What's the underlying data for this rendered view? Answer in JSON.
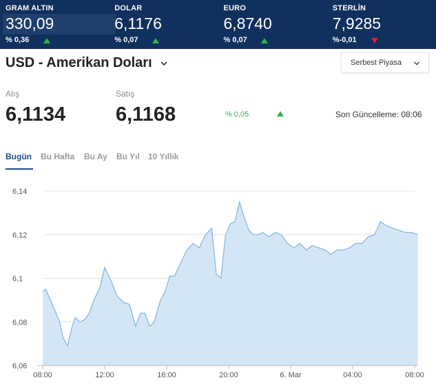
{
  "ticker": [
    {
      "name": "GRAM ALTIN",
      "value": "330,09",
      "change": "% 0,36",
      "direction": "up"
    },
    {
      "name": "DOLAR",
      "value": "6,1176",
      "change": "% 0,07",
      "direction": "up"
    },
    {
      "name": "EURO",
      "value": "6,8740",
      "change": "% 0,07",
      "direction": "up"
    },
    {
      "name": "STERLİN",
      "value": "7,9285",
      "change": "%-0,01",
      "direction": "down"
    }
  ],
  "header": {
    "title": "USD - Amerikan Doları",
    "market_select": "Serbest Piyasa"
  },
  "prices": {
    "buy_label": "Alış",
    "buy_value": "6,1134",
    "sell_label": "Satış",
    "sell_value": "6,1168",
    "change": "% 0,05",
    "updated": "Son Güncelleme: 08:06"
  },
  "tabs": [
    "Bugün",
    "Bu Hafta",
    "Bu Ay",
    "Bu Yıl",
    "10 Yıllık"
  ],
  "colors": {
    "ticker_bg": "#10305e",
    "up": "#2fb34c",
    "down": "#e5202e",
    "active_tab": "#1c4c8c",
    "line": "#7fb3e6",
    "area": "#d4e6f5"
  },
  "chart_data": {
    "type": "area",
    "xlabel": "",
    "ylabel": "",
    "ylim": [
      6.06,
      6.14
    ],
    "y_ticks": [
      "6,14",
      "6,12",
      "6,1",
      "6,08",
      "6,06"
    ],
    "y_tick_values": [
      6.14,
      6.12,
      6.1,
      6.08,
      6.06
    ],
    "x_ticks": [
      "08:00",
      "12:00",
      "16:00",
      "20:00",
      "6. Mar",
      "04:00",
      "08:00"
    ],
    "x_range_hours": [
      8,
      32
    ],
    "x_tick_hours": [
      8,
      12,
      16,
      20,
      24,
      28,
      32
    ],
    "grid": true,
    "series": [
      {
        "x_hours": [
          8.0,
          8.2,
          8.5,
          8.8,
          9.1,
          9.3,
          9.6,
          9.9,
          10.1,
          10.4,
          10.7,
          11.0,
          11.3,
          11.7,
          12.0,
          12.4,
          12.8,
          13.2,
          13.6,
          14.0,
          14.3,
          14.6,
          14.9,
          15.2,
          15.6,
          15.9,
          16.2,
          16.5,
          16.9,
          17.3,
          17.7,
          18.1,
          18.5,
          18.9,
          19.2,
          19.5,
          19.8,
          20.1,
          20.4,
          20.7,
          21.0,
          21.3,
          21.6,
          21.9,
          22.2,
          22.6,
          23.0,
          23.4,
          23.8,
          24.2,
          24.6,
          25.0,
          25.4,
          25.8,
          26.2,
          26.6,
          27.0,
          27.4,
          27.8,
          28.2,
          28.6,
          29.0,
          29.4,
          29.8,
          30.2,
          30.6,
          31.0,
          31.4,
          31.8,
          32.2
        ],
        "values": [
          6.094,
          6.095,
          6.09,
          6.085,
          6.08,
          6.073,
          6.069,
          6.078,
          6.082,
          6.08,
          6.081,
          6.084,
          6.09,
          6.096,
          6.105,
          6.099,
          6.092,
          6.089,
          6.088,
          6.078,
          6.084,
          6.084,
          6.078,
          6.08,
          6.09,
          6.094,
          6.101,
          6.101,
          6.107,
          6.113,
          6.116,
          6.114,
          6.12,
          6.123,
          6.102,
          6.1,
          6.12,
          6.125,
          6.126,
          6.135,
          6.128,
          6.122,
          6.12,
          6.12,
          6.121,
          6.119,
          6.121,
          6.12,
          6.116,
          6.114,
          6.116,
          6.113,
          6.115,
          6.114,
          6.113,
          6.111,
          6.113,
          6.113,
          6.114,
          6.116,
          6.116,
          6.119,
          6.12,
          6.126,
          6.124,
          6.123,
          6.122,
          6.121,
          6.121,
          6.12
        ]
      }
    ]
  }
}
